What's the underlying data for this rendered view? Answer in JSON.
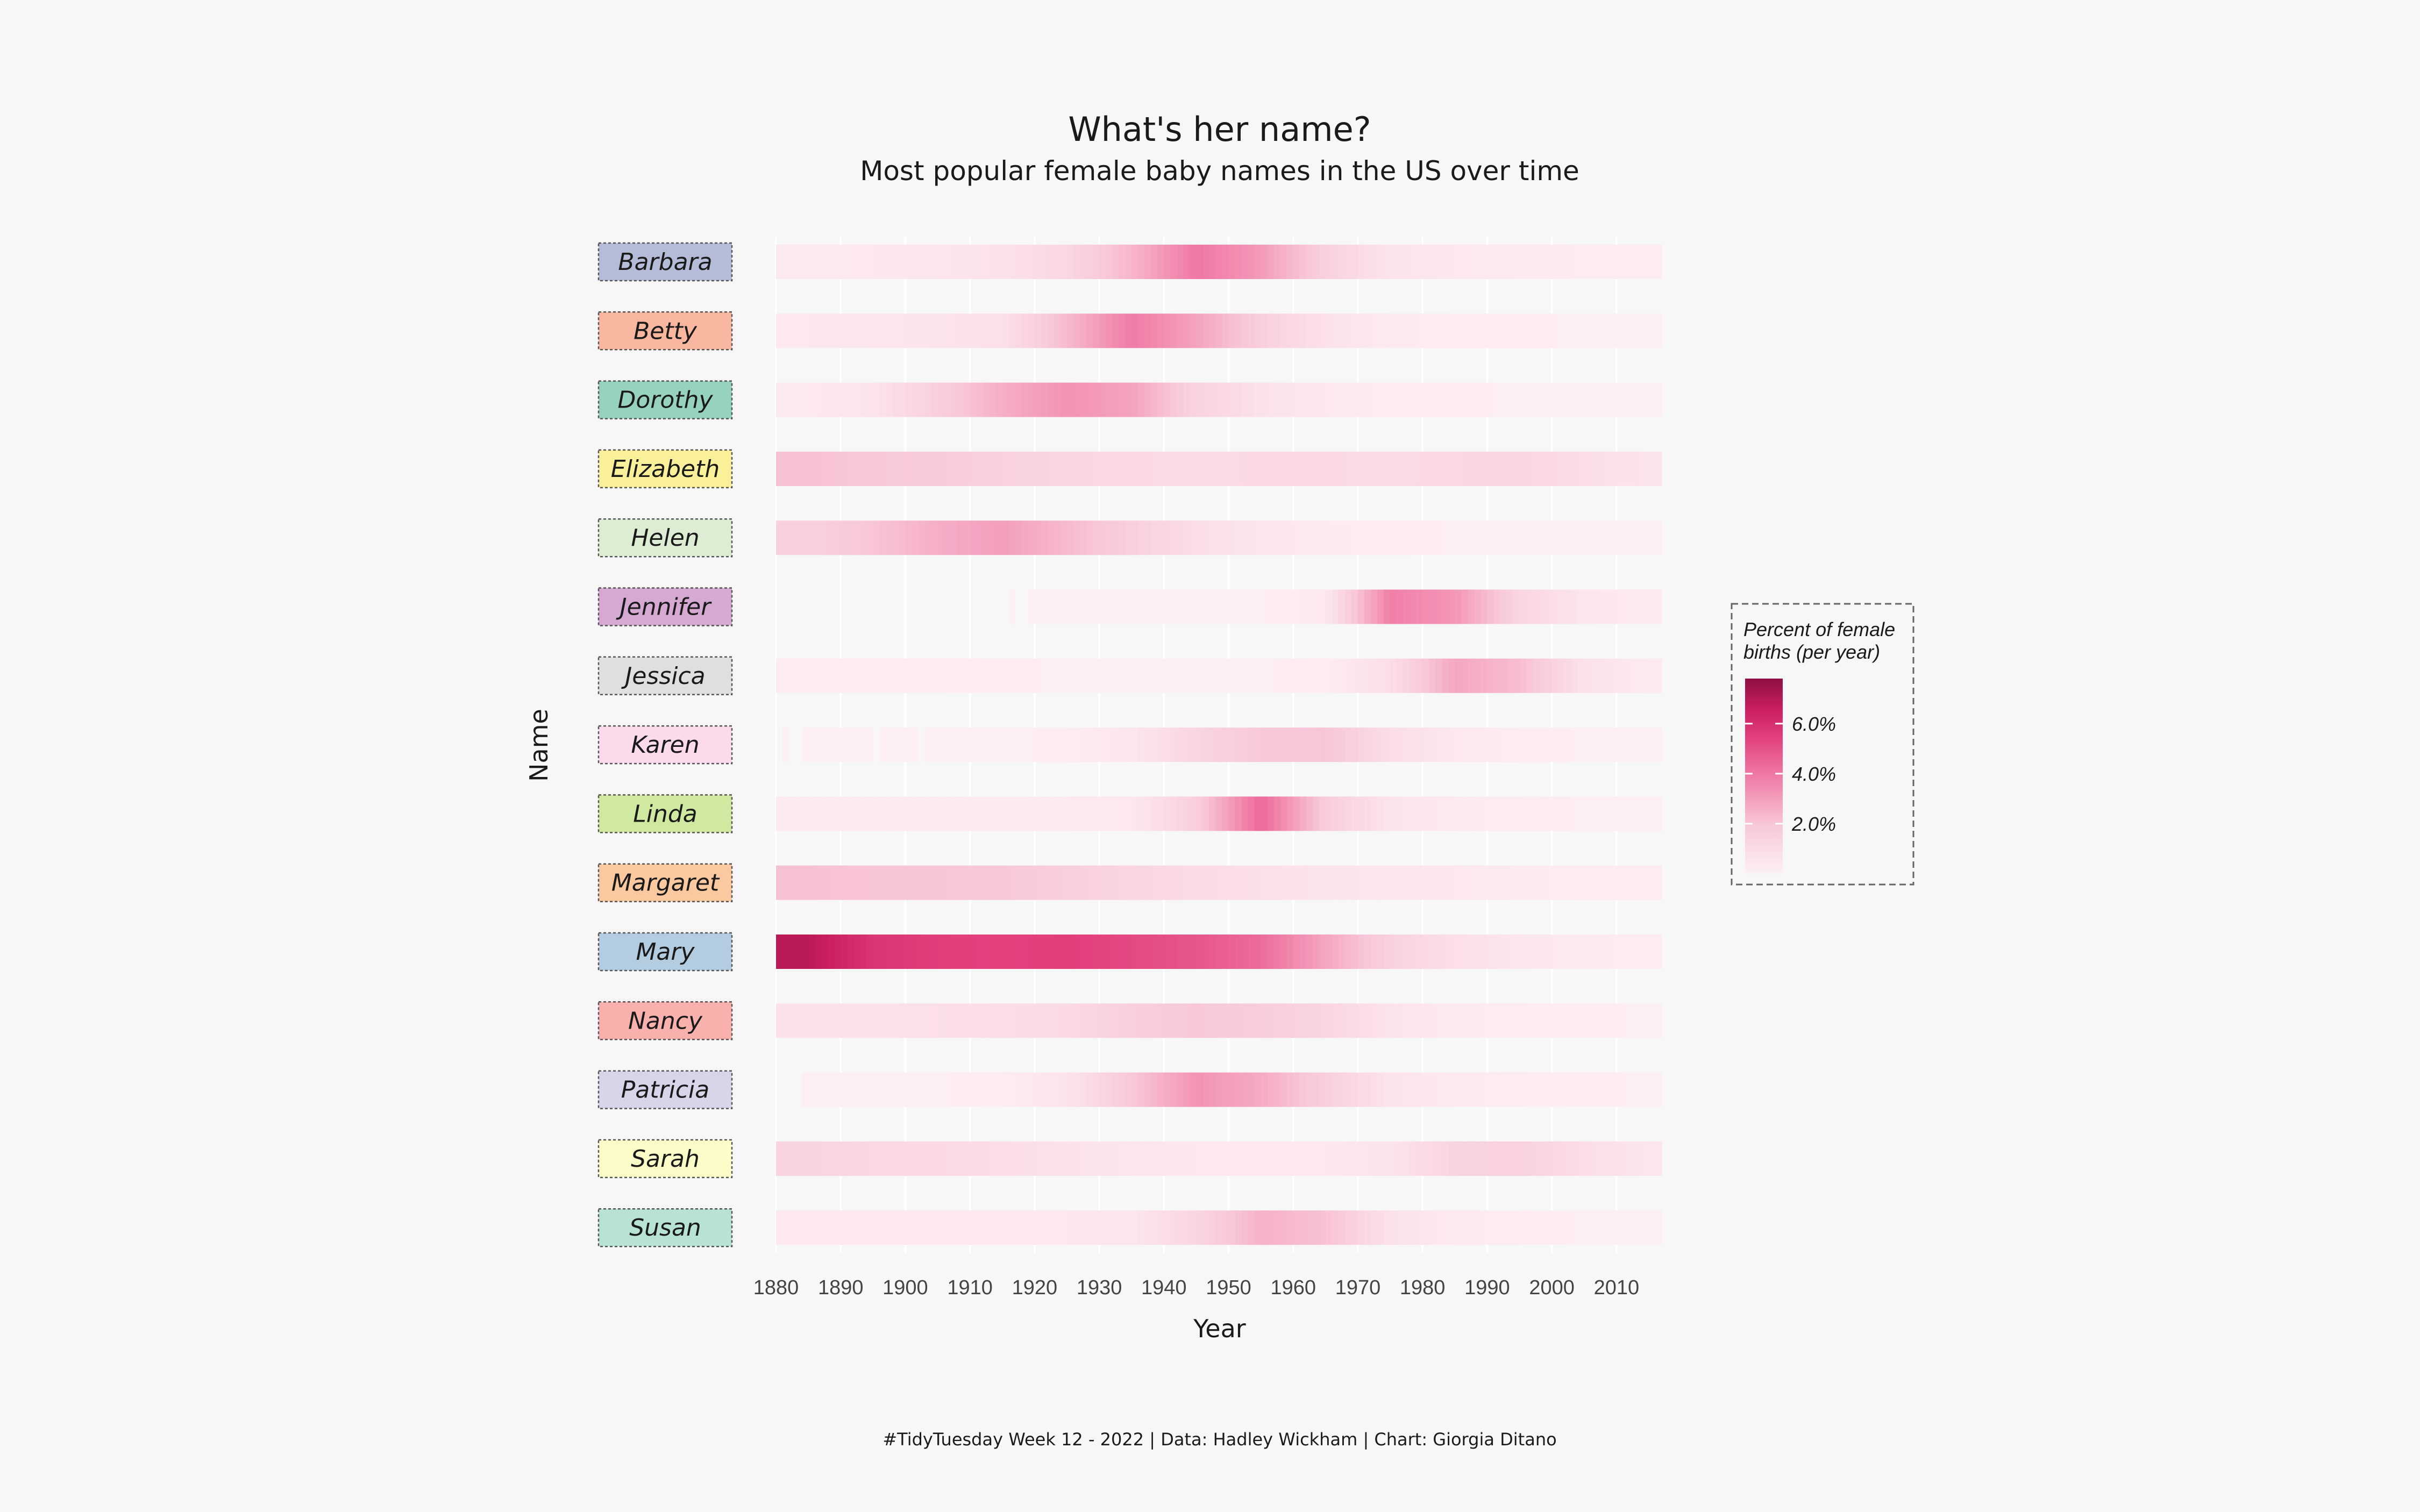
{
  "chart_data": {
    "type": "heatmap",
    "title": "What's her name?",
    "subtitle": "Most popular female baby names in the US over time",
    "xlabel": "Year",
    "ylabel": "Name",
    "xlim": [
      1880,
      2017
    ],
    "x_ticks": [
      "1880",
      "1890",
      "1900",
      "1910",
      "1920",
      "1930",
      "1940",
      "1950",
      "1960",
      "1970",
      "1980",
      "1990",
      "2000",
      "2010"
    ],
    "legend": {
      "title_line1": "Percent of female",
      "title_line2": "births (per year)",
      "ticks": [
        "6.0%",
        "4.0%",
        "2.0%"
      ],
      "tick_values": [
        6.0,
        4.0,
        2.0
      ],
      "range": [
        0,
        7.8
      ],
      "placement": "right"
    },
    "colormap": [
      "#fdf0f4",
      "#f8c7d8",
      "#f07ba6",
      "#e23f7d",
      "#c81d5f",
      "#8e0f45"
    ],
    "decades": [
      1880,
      1890,
      1900,
      1910,
      1920,
      1930,
      1940,
      1950,
      1960,
      1970,
      1980,
      1990,
      2000,
      2010
    ],
    "series": [
      {
        "name": "Barbara",
        "label_color": "#b4bcd8",
        "values": [
          0.35,
          0.4,
          0.5,
          0.7,
          1.2,
          2.4,
          4.0,
          3.1,
          1.5,
          0.6,
          0.4,
          0.3,
          0.25,
          0.2
        ],
        "gaps": []
      },
      {
        "name": "Betty",
        "label_color": "#f8b79e",
        "values": [
          0.4,
          0.5,
          0.6,
          0.8,
          2.3,
          3.9,
          2.9,
          1.6,
          0.7,
          0.3,
          0.2,
          0.15,
          0.1,
          0.1
        ],
        "gaps": []
      },
      {
        "name": "Dorothy",
        "label_color": "#96d2bf",
        "values": [
          0.35,
          0.6,
          1.6,
          2.6,
          3.3,
          2.9,
          1.4,
          0.7,
          0.4,
          0.2,
          0.15,
          0.1,
          0.1,
          0.1
        ],
        "gaps": []
      },
      {
        "name": "Elizabeth",
        "label_color": "#fbf09a",
        "values": [
          2.1,
          1.9,
          1.8,
          1.5,
          1.3,
          1.1,
          1.0,
          1.1,
          1.1,
          1.0,
          1.2,
          1.3,
          0.9,
          0.6
        ],
        "gaps": []
      },
      {
        "name": "Helen",
        "label_color": "#dcedd4",
        "values": [
          1.5,
          2.0,
          2.6,
          3.0,
          2.3,
          1.6,
          0.9,
          0.5,
          0.3,
          0.2,
          0.1,
          0.1,
          0.1,
          0.1
        ],
        "gaps": []
      },
      {
        "name": "Jennifer",
        "label_color": "#d5a9d2",
        "values": [
          null,
          null,
          null,
          null,
          0.05,
          0.05,
          0.05,
          0.08,
          0.4,
          3.8,
          3.2,
          1.3,
          0.5,
          0.3
        ],
        "gaps": [
          [
            1880,
            1916
          ],
          [
            1917,
            1919
          ]
        ]
      },
      {
        "name": "Jessica",
        "label_color": "#dfdfdf",
        "values": [
          0.2,
          0.2,
          0.2,
          0.15,
          0.1,
          0.1,
          0.1,
          0.1,
          0.2,
          0.9,
          2.8,
          2.2,
          0.7,
          0.3
        ],
        "gaps": []
      },
      {
        "name": "Karen",
        "label_color": "#fbdbeb",
        "values": [
          0.05,
          0.05,
          0.05,
          0.05,
          0.2,
          0.5,
          1.3,
          1.9,
          2.0,
          0.9,
          0.4,
          0.2,
          0.1,
          0.05
        ],
        "gaps": [
          [
            1880,
            1881
          ],
          [
            1882,
            1884
          ],
          [
            1895,
            1896
          ],
          [
            1902,
            1902.5
          ]
        ]
      },
      {
        "name": "Linda",
        "label_color": "#d0e9a0",
        "values": [
          0.3,
          0.3,
          0.3,
          0.3,
          0.3,
          0.4,
          1.6,
          4.4,
          1.7,
          0.6,
          0.3,
          0.2,
          0.1,
          0.1
        ],
        "gaps": []
      },
      {
        "name": "Margaret",
        "label_color": "#fac9a0",
        "values": [
          2.1,
          2.0,
          2.0,
          1.9,
          1.6,
          1.3,
          1.0,
          0.8,
          0.6,
          0.5,
          0.4,
          0.3,
          0.2,
          0.2
        ],
        "gaps": []
      },
      {
        "name": "Mary",
        "label_color": "#b4cce0",
        "values": [
          6.9,
          5.8,
          5.5,
          5.4,
          5.5,
          5.2,
          4.9,
          4.3,
          2.8,
          1.5,
          0.8,
          0.5,
          0.3,
          0.2
        ],
        "gaps": []
      },
      {
        "name": "Nancy",
        "label_color": "#f9b1ad",
        "values": [
          0.7,
          0.7,
          0.8,
          0.9,
          1.1,
          1.6,
          1.9,
          1.7,
          1.3,
          0.6,
          0.3,
          0.2,
          0.15,
          0.1
        ],
        "gaps": []
      },
      {
        "name": "Patricia",
        "label_color": "#d7d5e8",
        "values": [
          null,
          0.1,
          0.1,
          0.2,
          0.6,
          1.9,
          3.3,
          2.7,
          1.6,
          0.6,
          0.3,
          0.2,
          0.15,
          0.1
        ],
        "gaps": [
          [
            1880,
            1884
          ]
        ]
      },
      {
        "name": "Sarah",
        "label_color": "#fcfcc9",
        "values": [
          1.4,
          1.2,
          1.1,
          0.9,
          0.7,
          0.5,
          0.4,
          0.4,
          0.4,
          0.6,
          1.4,
          1.5,
          0.9,
          0.5
        ],
        "gaps": []
      },
      {
        "name": "Susan",
        "label_color": "#b8e3d4",
        "values": [
          0.4,
          0.4,
          0.4,
          0.4,
          0.4,
          0.5,
          1.3,
          2.5,
          2.1,
          0.7,
          0.3,
          0.2,
          0.1,
          0.1
        ],
        "gaps": []
      }
    ]
  },
  "caption": "#TidyTuesday Week 12 - 2022 | Data: Hadley Wickham | Chart: Giorgia Ditano"
}
